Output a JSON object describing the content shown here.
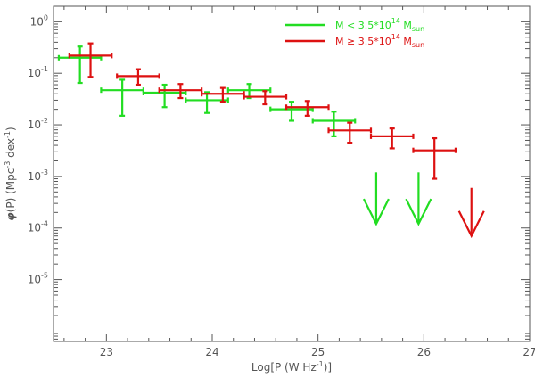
{
  "chart_data": {
    "type": "scatter",
    "title": "",
    "xlabel_base": "Log[P (W Hz",
    "xlabel_exp": "-1",
    "xlabel_tail": ")]",
    "ylabel_sym": "φ",
    "ylabel_mid": "(P) (Mpc",
    "ylabel_exp": "-3",
    "ylabel_tail": " dex",
    "ylabel_exp2": "-1",
    "ylabel_end": ")",
    "xlim": [
      22.5,
      27
    ],
    "ylim_log10": [
      -6.2,
      0.3
    ],
    "x_ticks": [
      23,
      24,
      25,
      26,
      27
    ],
    "x_tick_labels": [
      "23",
      "24",
      "25",
      "26",
      "27"
    ],
    "y_ticks_log10": [
      0,
      -1,
      -2,
      -3,
      -4,
      -5
    ],
    "y_tick_labels": [
      {
        "base": "10",
        "exp": "0"
      },
      {
        "base": "10",
        "exp": "-1"
      },
      {
        "base": "10",
        "exp": "-2"
      },
      {
        "base": "10",
        "exp": "-3"
      },
      {
        "base": "10",
        "exp": "-4"
      },
      {
        "base": "10",
        "exp": "-5"
      }
    ],
    "legend_position": "top-right",
    "series": [
      {
        "name_main": "M < 3.5*10",
        "name_exp": "14",
        "name_unit": " M",
        "name_sub": "sun",
        "color": "#22dd22",
        "points": [
          {
            "x": 22.75,
            "xerr": 0.2,
            "y": 0.2,
            "ylo": 0.065,
            "yhi": 0.33
          },
          {
            "x": 23.15,
            "xerr": 0.2,
            "y": 0.047,
            "ylo": 0.015,
            "yhi": 0.075
          },
          {
            "x": 23.55,
            "xerr": 0.2,
            "y": 0.042,
            "ylo": 0.022,
            "yhi": 0.06
          },
          {
            "x": 23.95,
            "xerr": 0.2,
            "y": 0.03,
            "ylo": 0.017,
            "yhi": 0.043
          },
          {
            "x": 24.35,
            "xerr": 0.2,
            "y": 0.047,
            "ylo": 0.033,
            "yhi": 0.062
          },
          {
            "x": 24.75,
            "xerr": 0.2,
            "y": 0.02,
            "ylo": 0.012,
            "yhi": 0.028
          },
          {
            "x": 25.15,
            "xerr": 0.2,
            "y": 0.012,
            "ylo": 0.006,
            "yhi": 0.018
          }
        ],
        "upper_limits": [
          {
            "x": 25.55,
            "y_top": 0.0012,
            "y_tip": 0.00012
          },
          {
            "x": 25.95,
            "y_top": 0.0012,
            "y_tip": 0.00012
          }
        ]
      },
      {
        "name_main": "M ≥ 3.5*10",
        "name_exp": "14",
        "name_unit": " M",
        "name_sub": "sun",
        "color": "#dd1111",
        "points": [
          {
            "x": 22.85,
            "xerr": 0.2,
            "y": 0.22,
            "ylo": 0.085,
            "yhi": 0.38
          },
          {
            "x": 23.3,
            "xerr": 0.2,
            "y": 0.088,
            "ylo": 0.06,
            "yhi": 0.12
          },
          {
            "x": 23.7,
            "xerr": 0.2,
            "y": 0.047,
            "ylo": 0.033,
            "yhi": 0.062
          },
          {
            "x": 24.1,
            "xerr": 0.2,
            "y": 0.04,
            "ylo": 0.028,
            "yhi": 0.052
          },
          {
            "x": 24.5,
            "xerr": 0.2,
            "y": 0.035,
            "ylo": 0.025,
            "yhi": 0.045
          },
          {
            "x": 24.9,
            "xerr": 0.2,
            "y": 0.022,
            "ylo": 0.015,
            "yhi": 0.029
          },
          {
            "x": 25.3,
            "xerr": 0.2,
            "y": 0.0078,
            "ylo": 0.0045,
            "yhi": 0.011
          },
          {
            "x": 25.7,
            "xerr": 0.2,
            "y": 0.006,
            "ylo": 0.0035,
            "yhi": 0.0085
          },
          {
            "x": 26.1,
            "xerr": 0.2,
            "y": 0.0032,
            "ylo": 0.0009,
            "yhi": 0.0055
          }
        ],
        "upper_limits": [
          {
            "x": 26.45,
            "y_top": 0.0006,
            "y_tip": 7e-05
          }
        ]
      }
    ]
  }
}
